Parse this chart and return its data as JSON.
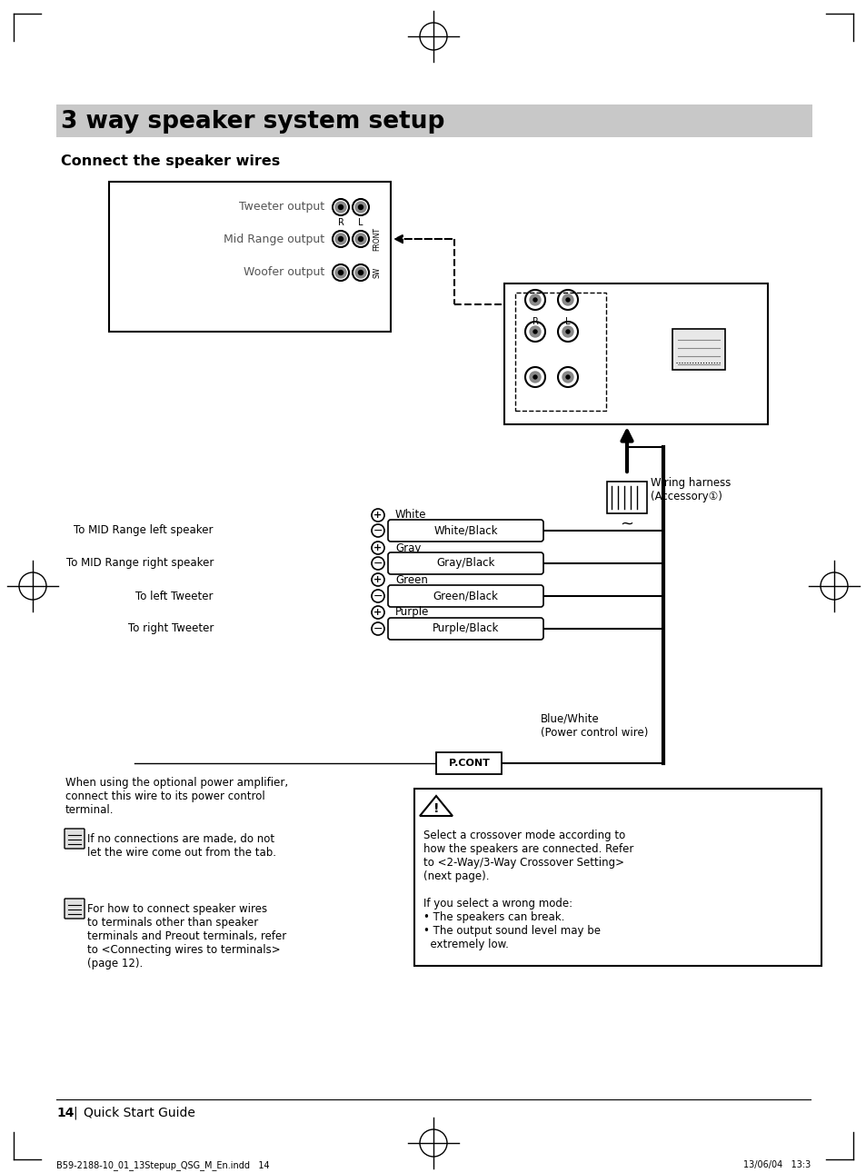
{
  "title": "3 way speaker system setup",
  "subtitle": "Connect the speaker wires",
  "bg_color": "#ffffff",
  "title_bar_color": "#c8c8c8",
  "page_footer": "14  |  Quick Start Guide",
  "file_footer": "B59-2188-10_01_13Stepup_QSG_M_En.indd   14",
  "date_footer": "13/06/04   13:3",
  "output_labels": [
    "Tweeter output",
    "Mid Range output",
    "Woofer output"
  ],
  "wire_labels": [
    {
      "name": "White",
      "type": "plus"
    },
    {
      "name": "White/Black",
      "type": "minus"
    },
    {
      "name": "Gray",
      "type": "plus"
    },
    {
      "name": "Gray/Black",
      "type": "minus"
    },
    {
      "name": "Green",
      "type": "plus"
    },
    {
      "name": "Green/Black",
      "type": "minus"
    },
    {
      "name": "Purple",
      "type": "plus"
    },
    {
      "name": "Purple/Black",
      "type": "minus"
    }
  ],
  "speaker_labels": [
    {
      "text": "To MID Range left speaker",
      "wire_row": 1
    },
    {
      "text": "To MID Range right speaker",
      "wire_row": 3
    },
    {
      "text": "To left Tweeter",
      "wire_row": 5
    },
    {
      "text": "To right Tweeter",
      "wire_row": 7
    }
  ],
  "wiring_harness_label": "Wiring harness\n(Accessory①)",
  "blue_white_label": "Blue/White\n(Power control wire)",
  "pcont_label": "P.CONT",
  "note1_main": "When using the optional power amplifier,\nconnect this wire to its power control\nterminal.",
  "note1_sub": "If no connections are made, do not\nlet the wire come out from the tab.",
  "warning_text": "Select a crossover mode according to\nhow the speakers are connected. Refer\nto <2-Way/3-Way Crossover Setting>\n(next page).\n\nIf you select a wrong mode:\n• The speakers can break.\n• The output sound level may be\n  extremely low.",
  "note2_main": "For how to connect speaker wires\nto terminals other than speaker\nterminals and Preout terminals, refer\nto <Connecting wires to terminals>\n(page 12)."
}
